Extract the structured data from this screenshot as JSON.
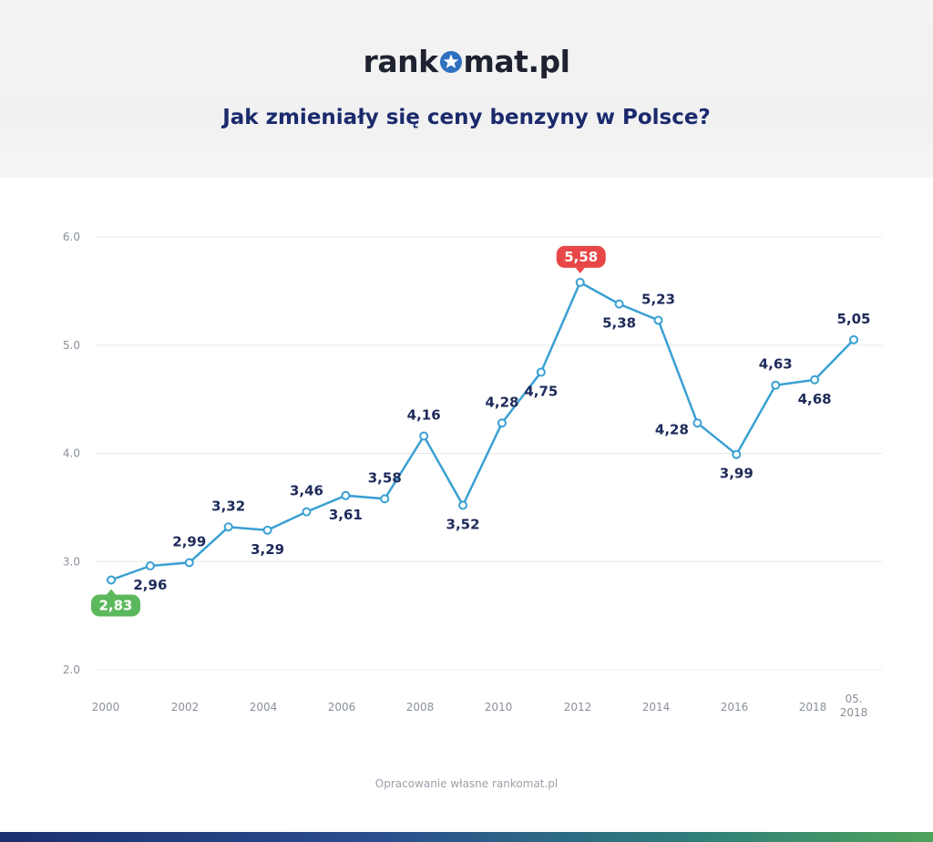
{
  "header": {
    "logo_left": "rank",
    "logo_right": "mat.pl",
    "title": "Jak zmieniały się ceny benzyny w Polsce?"
  },
  "footer": {
    "source": "Opracowanie własne rankomat.pl"
  },
  "colors": {
    "line": "#3aa0d3",
    "label": "#1e2a5a",
    "axis_text": "#8a909a",
    "grid": "#e8e8ea",
    "min_badge": "#5cb85c",
    "max_badge": "#e84747"
  },
  "chart_data": {
    "type": "line",
    "title": "Jak zmieniały się ceny benzyny w Polsce?",
    "xlabel": "",
    "ylabel": "",
    "ylim": [
      2.0,
      6.0
    ],
    "yticks": [
      "2.0",
      "3.0",
      "4.0",
      "5.0",
      "6.0"
    ],
    "grid": true,
    "xtick_labels": [
      "2000",
      "2002",
      "2004",
      "2006",
      "2008",
      "2010",
      "2012",
      "2014",
      "2016",
      "2018",
      "05.\n2018"
    ],
    "series": [
      {
        "labels": [
          "2,83",
          "2,96",
          "2,99",
          "3,32",
          "3,29",
          "3,46",
          "3,61",
          "3,58",
          "4,16",
          "3,52",
          "4,28",
          "4,75",
          "5,58",
          "5,38",
          "5,23",
          "4,28",
          "3,99",
          "4,63",
          "4,68",
          "5,05"
        ],
        "values": [
          2.83,
          2.96,
          2.99,
          3.32,
          3.29,
          3.46,
          3.61,
          3.58,
          4.16,
          3.52,
          4.28,
          4.75,
          5.58,
          5.38,
          5.23,
          4.28,
          3.99,
          4.63,
          4.68,
          5.05
        ]
      }
    ],
    "highlight_min": "2,83",
    "highlight_max": "5,58"
  }
}
